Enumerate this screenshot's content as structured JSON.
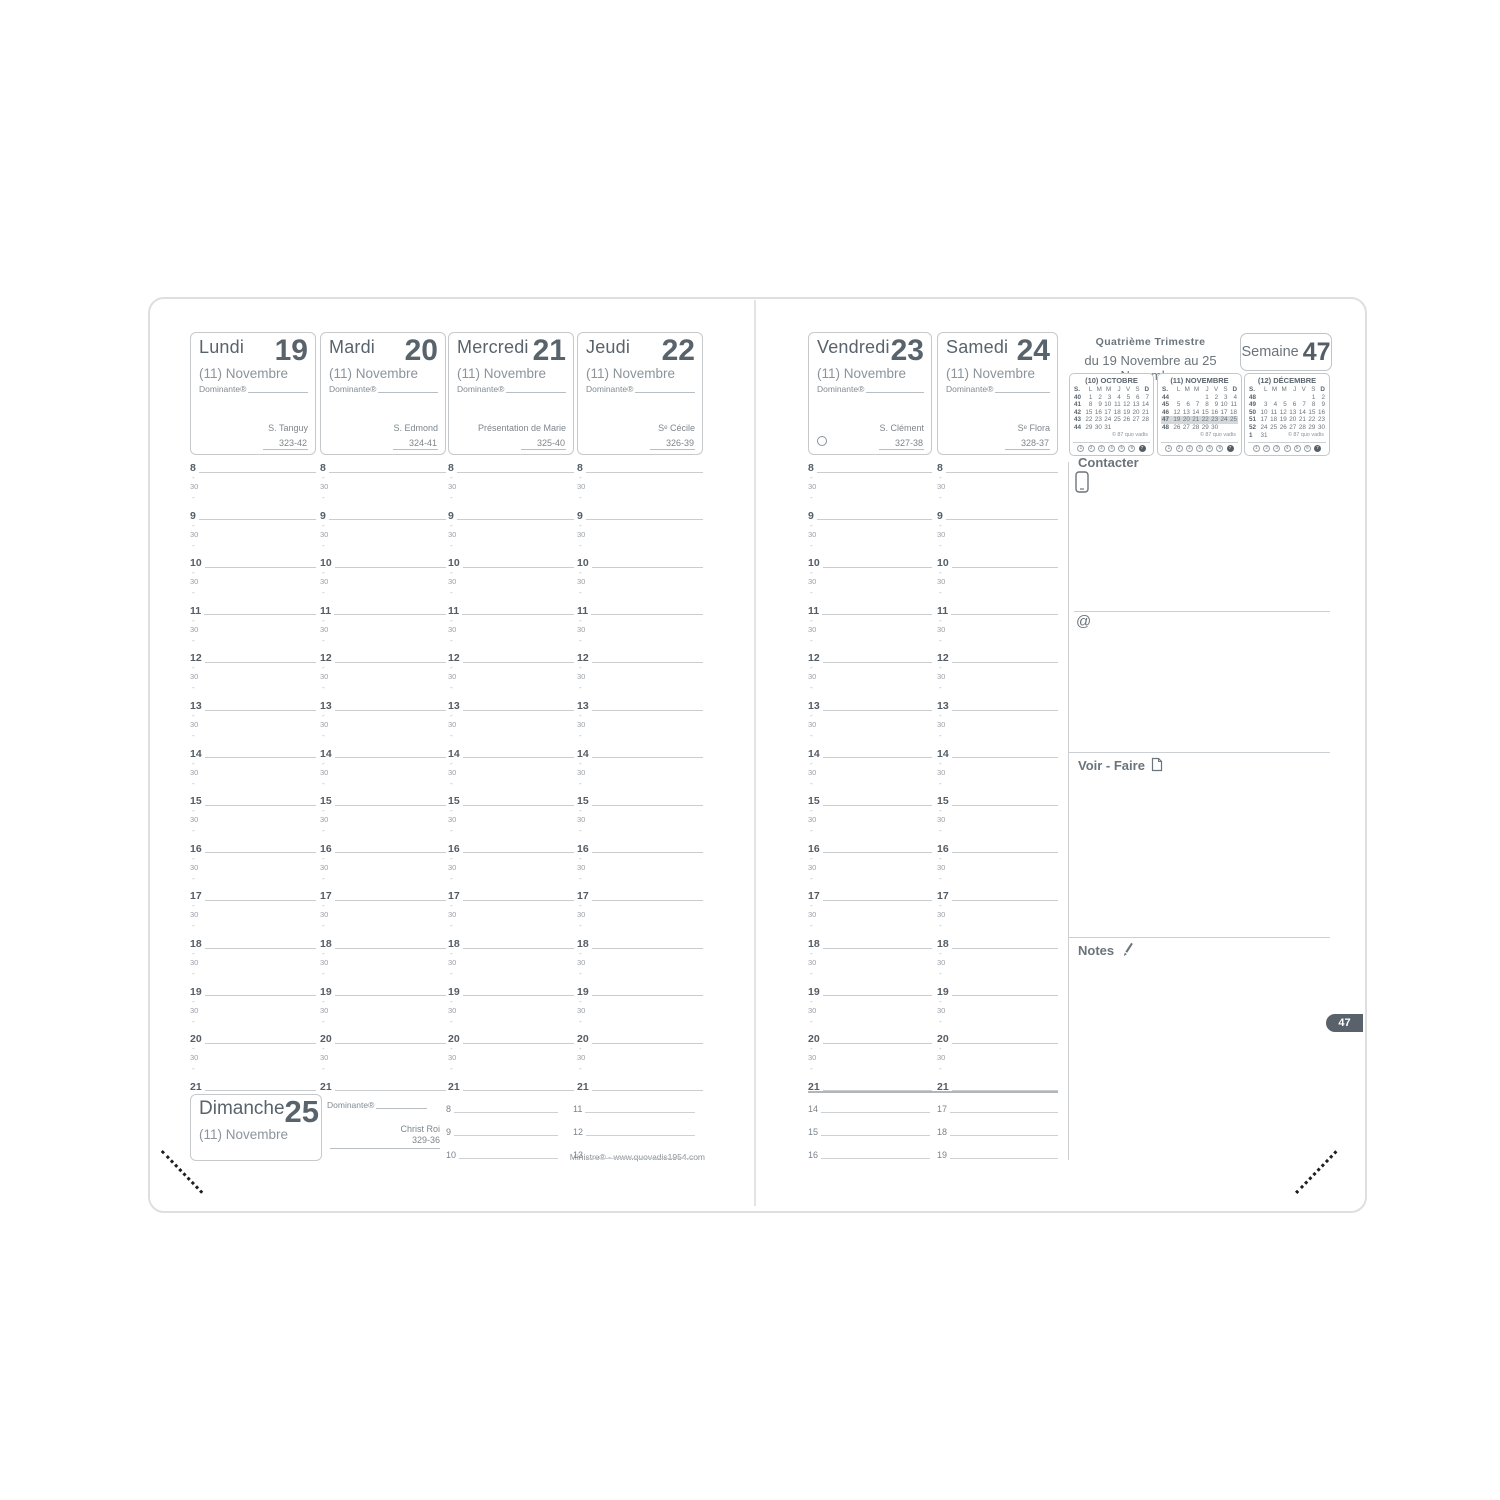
{
  "meta": {
    "brand": "Ministre® - www.quovadis1954.com",
    "page_tab": "47"
  },
  "week": {
    "quarter": "Quatrième Trimestre",
    "range": "du 19 Novembre au 25 Novembre",
    "semaine_label": "Semaine",
    "number": "47"
  },
  "sections": {
    "contacter": "Contacter",
    "at": "@",
    "voir_faire": "Voir - Faire",
    "notes": "Notes"
  },
  "timegrid": {
    "hours": [
      "8",
      "9",
      "10",
      "11",
      "12",
      "13",
      "14",
      "15",
      "16",
      "17",
      "18",
      "19",
      "20",
      "21"
    ],
    "half_label": "30",
    "quarter_label": "-"
  },
  "days": [
    {
      "name": "Lundi",
      "number": "19",
      "month": "(11) Novembre",
      "dominante": "Dominante®",
      "saint": "S. Tanguy",
      "code": "323-42",
      "moon": false
    },
    {
      "name": "Mardi",
      "number": "20",
      "month": "(11) Novembre",
      "dominante": "Dominante®",
      "saint": "S. Edmond",
      "code": "324-41",
      "moon": false
    },
    {
      "name": "Mercredi",
      "number": "21",
      "month": "(11) Novembre",
      "dominante": "Dominante®",
      "saint": "Présentation de Marie",
      "code": "325-40",
      "moon": false
    },
    {
      "name": "Jeudi",
      "number": "22",
      "month": "(11) Novembre",
      "dominante": "Dominante®",
      "saint": "Sᵉ Cécile",
      "code": "326-39",
      "moon": false
    },
    {
      "name": "Vendredi",
      "number": "23",
      "month": "(11) Novembre",
      "dominante": "Dominante®",
      "saint": "S. Clément",
      "code": "327-38",
      "moon": true
    },
    {
      "name": "Samedi",
      "number": "24",
      "month": "(11) Novembre",
      "dominante": "Dominante®",
      "saint": "Sᵉ Flora",
      "code": "328-37",
      "moon": false
    }
  ],
  "sunday": {
    "name": "Dimanche",
    "number": "25",
    "month": "(11) Novembre",
    "dominante": "Dominante®",
    "saint": "Christ Roi",
    "code": "329-36",
    "left_time_cols": [
      [
        "8",
        "9",
        "10"
      ],
      [
        "11",
        "12",
        "13"
      ]
    ],
    "right_time_cols": [
      [
        "14",
        "15",
        "16"
      ],
      [
        "17",
        "18",
        "19"
      ]
    ]
  },
  "mini_calendars": [
    {
      "title": "(10) OCTOBRE",
      "dow": [
        "S.",
        "L",
        "M",
        "M",
        "J",
        "V",
        "S",
        "D"
      ],
      "rows": [
        [
          "40",
          "1",
          "2",
          "3",
          "4",
          "5",
          "6",
          "7"
        ],
        [
          "41",
          "8",
          "9",
          "10",
          "11",
          "12",
          "13",
          "14"
        ],
        [
          "42",
          "15",
          "16",
          "17",
          "18",
          "19",
          "20",
          "21"
        ],
        [
          "43",
          "22",
          "23",
          "24",
          "25",
          "26",
          "27",
          "28"
        ],
        [
          "44",
          "29",
          "30",
          "31",
          "",
          "",
          "",
          ""
        ]
      ],
      "highlight_row": -1,
      "copyright": "© 87 quo vadis",
      "footer_circles": [
        "1",
        "2",
        "3",
        "4",
        "5",
        "6",
        "7"
      ]
    },
    {
      "title": "(11) NOVEMBRE",
      "dow": [
        "S.",
        "L",
        "M",
        "M",
        "J",
        "V",
        "S",
        "D"
      ],
      "rows": [
        [
          "44",
          "",
          "",
          "",
          "1",
          "2",
          "3",
          "4"
        ],
        [
          "45",
          "5",
          "6",
          "7",
          "8",
          "9",
          "10",
          "11"
        ],
        [
          "46",
          "12",
          "13",
          "14",
          "15",
          "16",
          "17",
          "18"
        ],
        [
          "47",
          "19",
          "20",
          "21",
          "22",
          "23",
          "24",
          "25"
        ],
        [
          "48",
          "26",
          "27",
          "28",
          "29",
          "30",
          "",
          ""
        ]
      ],
      "highlight_row": 3,
      "copyright": "© 87 quo vadis",
      "footer_circles": [
        "1",
        "2",
        "3",
        "4",
        "5",
        "6",
        "7"
      ]
    },
    {
      "title": "(12) DÉCEMBRE",
      "dow": [
        "S.",
        "L",
        "M",
        "M",
        "J",
        "V",
        "S",
        "D"
      ],
      "rows": [
        [
          "48",
          "",
          "",
          "",
          "",
          "",
          "1",
          "2"
        ],
        [
          "49",
          "3",
          "4",
          "5",
          "6",
          "7",
          "8",
          "9"
        ],
        [
          "50",
          "10",
          "11",
          "12",
          "13",
          "14",
          "15",
          "16"
        ],
        [
          "51",
          "17",
          "18",
          "19",
          "20",
          "21",
          "22",
          "23"
        ],
        [
          "52",
          "24",
          "25",
          "26",
          "27",
          "28",
          "29",
          "30"
        ],
        [
          "1",
          "31",
          "",
          "",
          "",
          "",
          "",
          ""
        ]
      ],
      "highlight_row": -1,
      "copyright": "© 87 quo vadis",
      "footer_circles": [
        "1",
        "2",
        "3",
        "4",
        "5",
        "6",
        "7"
      ]
    }
  ]
}
